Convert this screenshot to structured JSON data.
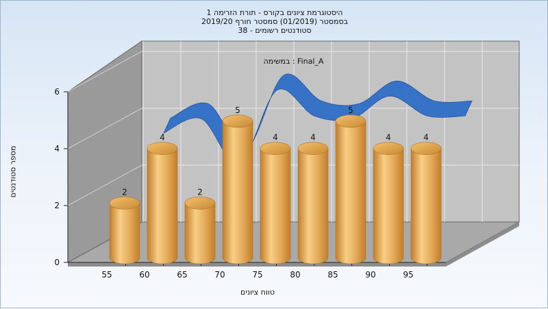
{
  "chart_data": {
    "type": "bar",
    "title_lines": [
      "היסטוגרמת ציונים בקורס - תורת הזרימה 1",
      "בסמסטר  (01/2019)  סמסטר חורף 2019/20",
      "סטודנטים רשומים - 38"
    ],
    "series_label": "Final_A : במשימה",
    "xlabel": "טווח ציונים",
    "ylabel": "מספר סטודנטים",
    "x_ticks": [
      "55",
      "60",
      "65",
      "70",
      "75",
      "80",
      "85",
      "90",
      "95"
    ],
    "y_ticks": [
      "0",
      "2",
      "4",
      "6"
    ],
    "ylim": [
      0,
      6
    ],
    "bars": [
      {
        "category": "55",
        "value": 2
      },
      {
        "category": "60",
        "value": 4
      },
      {
        "category": "65",
        "value": 2
      },
      {
        "category": "70",
        "value": 5
      },
      {
        "category": "75",
        "value": 4
      },
      {
        "category": "80",
        "value": 4
      },
      {
        "category": "85",
        "value": 5
      },
      {
        "category": "90",
        "value": 4
      },
      {
        "category": "95",
        "value": 4
      }
    ],
    "distribution_curve": {
      "x": [
        60,
        65,
        70,
        75,
        80,
        85,
        90,
        95,
        100
      ],
      "y": [
        3.9,
        4.4,
        2.8,
        5.4,
        4.5,
        4.4,
        5.2,
        4.5,
        4.5
      ]
    },
    "grid": true,
    "colors": {
      "bar_side": "#e1a756",
      "bar_light": "#f8cf86",
      "bar_dark": "#c07e2c",
      "curve": "#2f6fc8",
      "back_wall": "#c3c3c3",
      "side_wall": "#9a9a9a",
      "floor": "#a9a9a9"
    }
  }
}
